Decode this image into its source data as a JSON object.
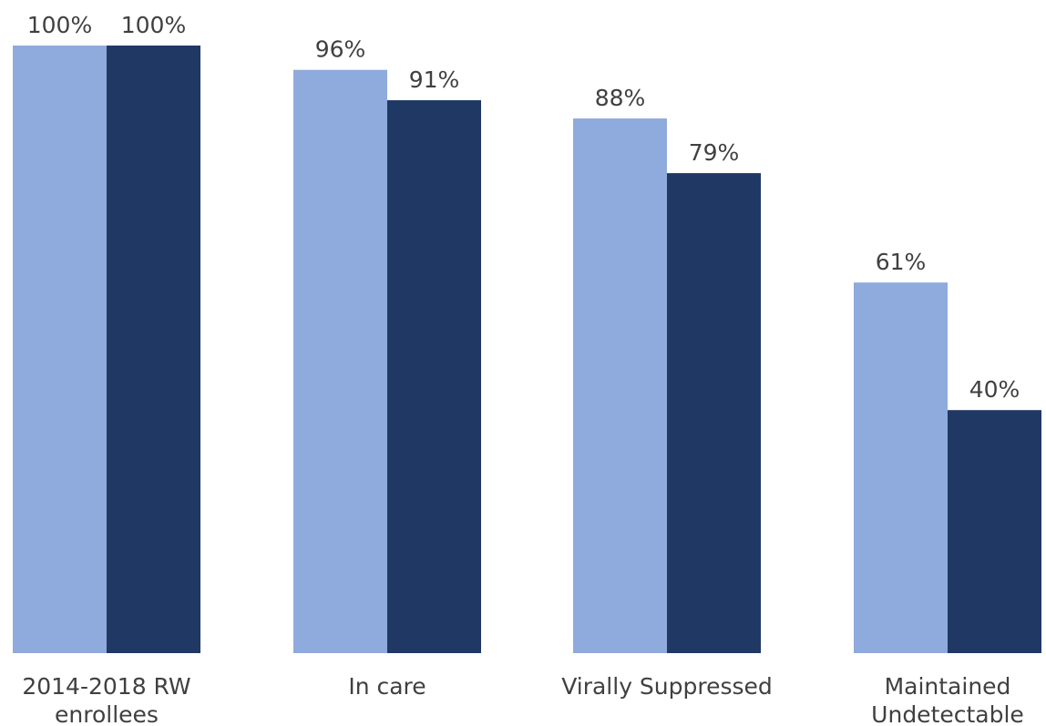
{
  "chart_data": {
    "type": "bar",
    "categories": [
      [
        "2014-2018 RW",
        "enrollees"
      ],
      [
        "In care"
      ],
      [
        "Virally Suppressed"
      ],
      [
        "Maintained",
        "Undetectable"
      ]
    ],
    "series": [
      {
        "values": [
          100,
          96,
          88,
          61
        ],
        "labels": [
          "100%",
          "96%",
          "88%",
          "61%"
        ],
        "color": "#8faadc"
      },
      {
        "values": [
          100,
          91,
          79,
          40
        ],
        "labels": [
          "100%",
          "91%",
          "79%",
          "40%"
        ],
        "color": "#203864"
      }
    ],
    "ylim": [
      0,
      100
    ],
    "grid": false
  }
}
